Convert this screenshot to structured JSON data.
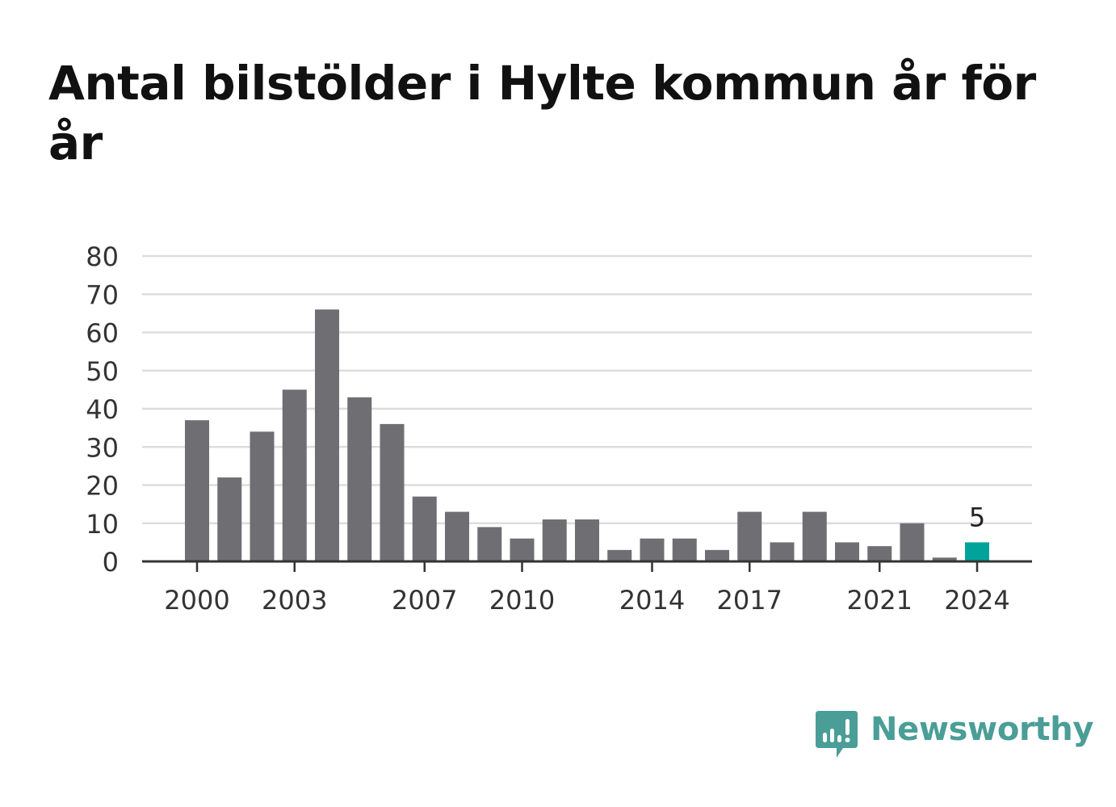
{
  "title": "Antal bilstölder i Hylte kommun år för år",
  "chart_data": {
    "type": "bar",
    "categories": [
      2000,
      2001,
      2002,
      2003,
      2004,
      2005,
      2006,
      2007,
      2008,
      2009,
      2010,
      2011,
      2012,
      2013,
      2014,
      2015,
      2016,
      2017,
      2018,
      2019,
      2020,
      2021,
      2022,
      2023,
      2024
    ],
    "values": [
      37,
      22,
      34,
      45,
      66,
      43,
      36,
      17,
      13,
      9,
      6,
      11,
      11,
      3,
      6,
      6,
      3,
      13,
      5,
      13,
      5,
      4,
      10,
      1,
      5
    ],
    "ylim": [
      0,
      80
    ],
    "yticks": [
      0,
      10,
      20,
      30,
      40,
      50,
      60,
      70,
      80
    ],
    "xticks": [
      2000,
      2003,
      2007,
      2010,
      2014,
      2017,
      2021,
      2024
    ],
    "highlight": {
      "category": 2024,
      "label": "5"
    },
    "grid": true,
    "colors": {
      "bar": "#6f6f73",
      "highlight": "#00a39a",
      "grid": "#dddddd",
      "axis": "#333333"
    }
  },
  "brand": {
    "name": "Newsworthy",
    "icon": "newsworthy-logo-icon",
    "color": "#4a9e97"
  }
}
